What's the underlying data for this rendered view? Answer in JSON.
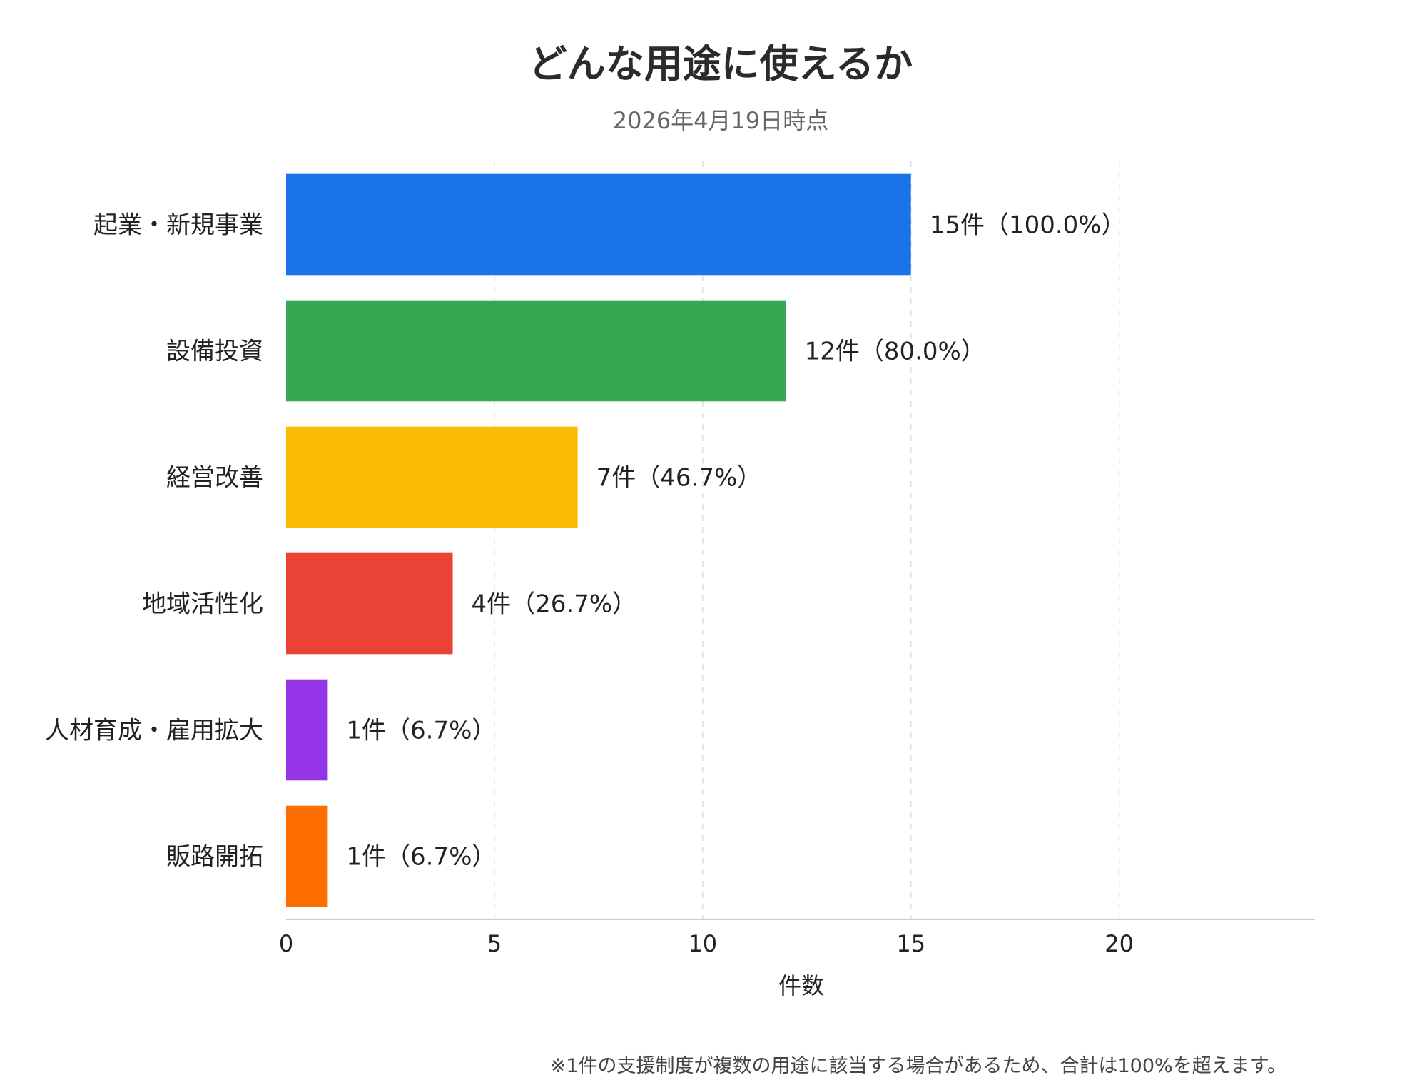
{
  "chart_data": {
    "type": "bar",
    "orientation": "horizontal",
    "title": "どんな用途に使えるか",
    "subtitle": "2026年4月19日時点",
    "xlabel": "件数",
    "ylabel": "",
    "xlim": [
      0,
      24.7
    ],
    "x_ticks": [
      0,
      5,
      10,
      15,
      20
    ],
    "grid": true,
    "categories": [
      "起業・新規事業",
      "設備投資",
      "経営改善",
      "地域活性化",
      "人材育成・雇用拡大",
      "販路開拓"
    ],
    "values": [
      15,
      12,
      7,
      4,
      1,
      1
    ],
    "value_labels": [
      "15件（100.0%）",
      "12件（80.0%）",
      "7件（46.7%）",
      "4件（26.7%）",
      "1件（6.7%）",
      "1件（6.7%）"
    ],
    "colors": [
      "#1a73e8",
      "#34a853",
      "#fbbc04",
      "#ea4335",
      "#9334e6",
      "#ff6d01"
    ]
  },
  "footnote": "※1件の支援制度が複数の用途に該当する場合があるため、合計は100%を超えます。"
}
